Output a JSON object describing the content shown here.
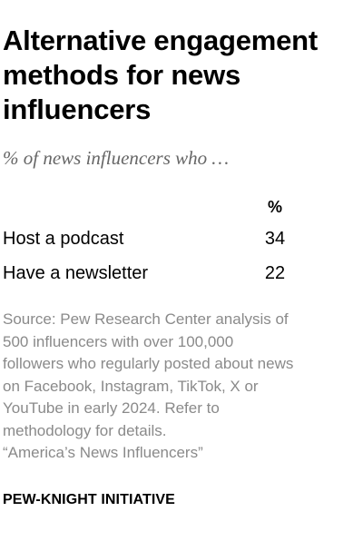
{
  "chart_data": {
    "type": "table",
    "title": "Alternative engagement methods for news influencers",
    "subtitle": "% of news influencers who …",
    "column_header": "%",
    "categories": [
      "Host a podcast",
      "Have a newsletter"
    ],
    "values": [
      34,
      22
    ]
  },
  "footer": {
    "source_lines": [
      "Source: Pew Research Center analysis of",
      "500 influencers with over 100,000",
      "followers who regularly posted about news",
      "on Facebook, Instagram, TikTok, X or",
      "YouTube in early 2024. Refer to",
      "methodology for details.",
      "“America’s News Influencers”"
    ],
    "organization": "PEW-KNIGHT INITIATIVE"
  }
}
